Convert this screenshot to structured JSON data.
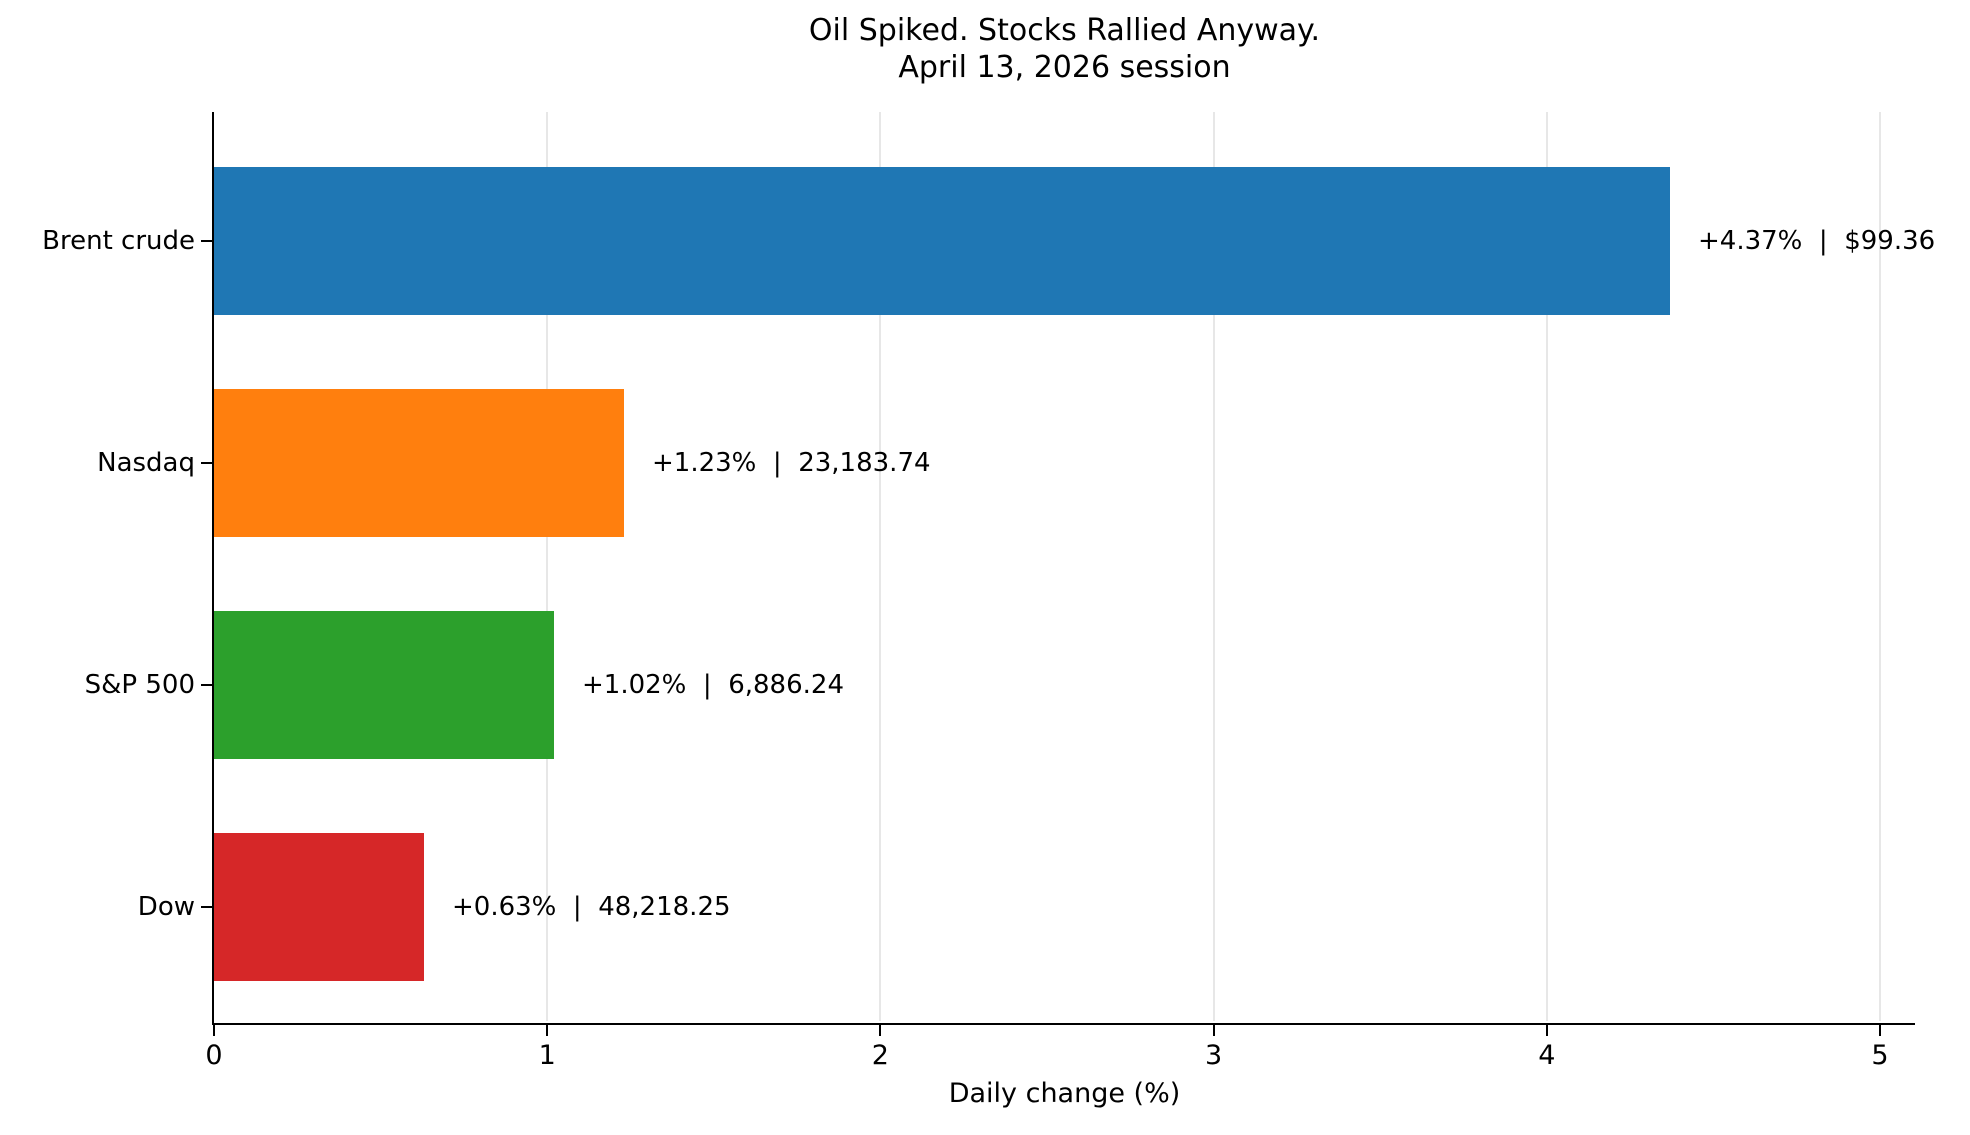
{
  "chart_data": {
    "type": "bar",
    "orientation": "horizontal",
    "title": "Oil Spiked. Stocks Rallied Anyway.",
    "subtitle": "April 13, 2026 session",
    "xlabel": "Daily change (%)",
    "xlim": [
      0,
      5
    ],
    "xticks": [
      "0",
      "1",
      "2",
      "3",
      "4",
      "5"
    ],
    "grid": true,
    "legend": false,
    "categories": [
      "Brent crude",
      "Nasdaq",
      "S&P 500",
      "Dow"
    ],
    "values": [
      4.37,
      1.23,
      1.02,
      0.63
    ],
    "value_labels": [
      "+4.37%  |  $99.36",
      "+1.23%  |  23,183.74",
      "+1.02%  |  6,886.24",
      "+0.63%  |  48,218.25"
    ],
    "bar_colors": [
      "#1f77b4",
      "#ff7f0e",
      "#2ca02c",
      "#d62728"
    ],
    "colors": {
      "text": "#000000",
      "grid": "#e7e7e7",
      "spine": "#000000",
      "background": "#ffffff"
    }
  }
}
